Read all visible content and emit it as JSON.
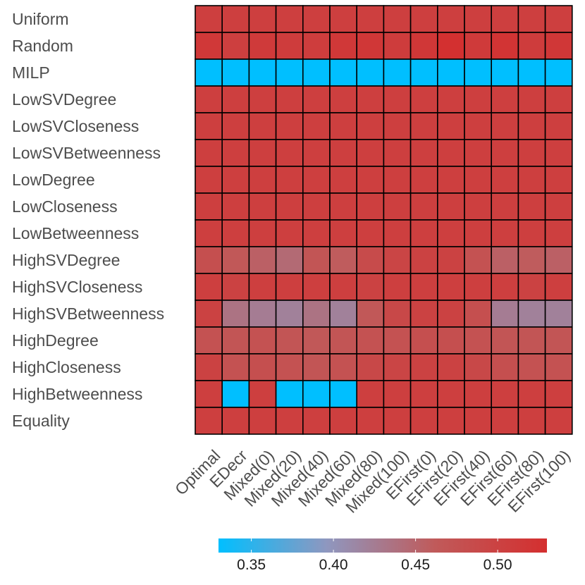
{
  "chart_data": {
    "type": "heatmap",
    "rows": [
      "Uniform",
      "Random",
      "MILP",
      "LowSVDegree",
      "LowSVCloseness",
      "LowSVBetweenness",
      "LowDegree",
      "LowCloseness",
      "LowBetweenness",
      "HighSVDegree",
      "HighSVCloseness",
      "HighSVBetweenness",
      "HighDegree",
      "HighCloseness",
      "HighBetweenness",
      "Equality"
    ],
    "columns": [
      "Optimal",
      "EDecr",
      "Mixed(0)",
      "Mixed(20)",
      "Mixed(40)",
      "Mixed(60)",
      "Mixed(80)",
      "Mixed(100)",
      "EFirst(0)",
      "EFirst(20)",
      "EFirst(40)",
      "EFirst(60)",
      "EFirst(80)",
      "EFirst(100)"
    ],
    "values": [
      [
        0.505,
        0.505,
        0.505,
        0.505,
        0.505,
        0.505,
        0.505,
        0.505,
        0.505,
        0.505,
        0.505,
        0.505,
        0.505,
        0.505
      ],
      [
        0.515,
        0.505,
        0.512,
        0.51,
        0.508,
        0.515,
        0.518,
        0.51,
        0.518,
        0.528,
        0.512,
        0.522,
        0.51,
        0.518
      ],
      [
        0.33,
        0.33,
        0.33,
        0.33,
        0.33,
        0.33,
        0.33,
        0.33,
        0.33,
        0.33,
        0.33,
        0.33,
        0.33,
        0.33
      ],
      [
        0.505,
        0.505,
        0.505,
        0.505,
        0.505,
        0.505,
        0.505,
        0.505,
        0.505,
        0.505,
        0.505,
        0.505,
        0.505,
        0.505
      ],
      [
        0.505,
        0.505,
        0.505,
        0.505,
        0.505,
        0.505,
        0.505,
        0.505,
        0.505,
        0.505,
        0.505,
        0.505,
        0.505,
        0.505
      ],
      [
        0.505,
        0.505,
        0.505,
        0.505,
        0.505,
        0.505,
        0.505,
        0.505,
        0.505,
        0.505,
        0.505,
        0.505,
        0.505,
        0.505
      ],
      [
        0.505,
        0.505,
        0.505,
        0.505,
        0.505,
        0.505,
        0.505,
        0.505,
        0.505,
        0.505,
        0.505,
        0.505,
        0.505,
        0.505
      ],
      [
        0.505,
        0.505,
        0.505,
        0.505,
        0.505,
        0.505,
        0.505,
        0.505,
        0.505,
        0.505,
        0.505,
        0.505,
        0.505,
        0.505
      ],
      [
        0.505,
        0.505,
        0.505,
        0.505,
        0.505,
        0.505,
        0.505,
        0.505,
        0.505,
        0.505,
        0.505,
        0.505,
        0.505,
        0.505
      ],
      [
        0.48,
        0.465,
        0.455,
        0.445,
        0.47,
        0.46,
        0.485,
        0.495,
        0.5,
        0.5,
        0.475,
        0.455,
        0.46,
        0.455
      ],
      [
        0.505,
        0.5,
        0.505,
        0.505,
        0.505,
        0.505,
        0.5,
        0.505,
        0.505,
        0.505,
        0.505,
        0.505,
        0.5,
        0.505
      ],
      [
        0.5,
        0.435,
        0.425,
        0.42,
        0.435,
        0.42,
        0.465,
        0.49,
        0.5,
        0.5,
        0.48,
        0.425,
        0.42,
        0.42
      ],
      [
        0.475,
        0.47,
        0.475,
        0.47,
        0.465,
        0.47,
        0.475,
        0.475,
        0.48,
        0.48,
        0.475,
        0.47,
        0.47,
        0.47
      ],
      [
        0.5,
        0.475,
        0.48,
        0.475,
        0.47,
        0.475,
        0.49,
        0.495,
        0.5,
        0.5,
        0.49,
        0.48,
        0.475,
        0.475
      ],
      [
        0.505,
        0.33,
        0.505,
        0.33,
        0.33,
        0.33,
        0.505,
        0.505,
        0.505,
        0.505,
        0.505,
        0.505,
        0.505,
        0.505
      ],
      [
        0.505,
        0.505,
        0.505,
        0.505,
        0.505,
        0.505,
        0.505,
        0.505,
        0.505,
        0.505,
        0.505,
        0.505,
        0.505,
        0.505
      ]
    ],
    "colorbar": {
      "range": [
        0.33,
        0.53
      ],
      "ticks": [
        0.35,
        0.4,
        0.45,
        0.5
      ],
      "tick_labels": [
        "0.35",
        "0.40",
        "0.45",
        "0.50"
      ],
      "colors": [
        "#00bfff",
        "#8f97bf",
        "#c05a5a",
        "#d42f2f"
      ],
      "placement": "bottom"
    },
    "title": "",
    "xlabel": "",
    "ylabel": ""
  }
}
